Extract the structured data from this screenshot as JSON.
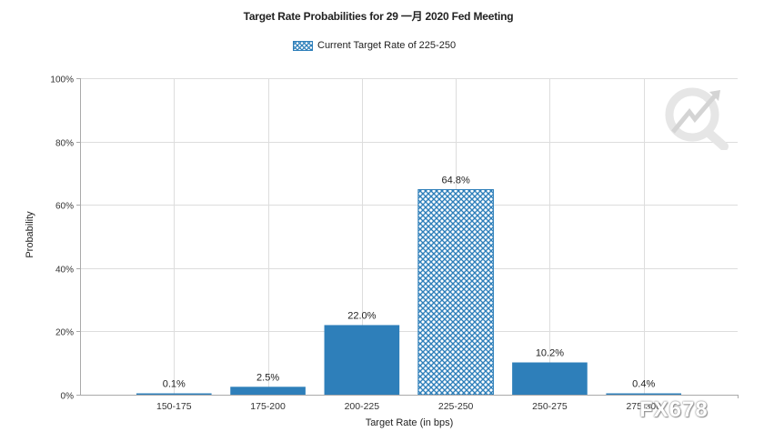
{
  "chart_data": {
    "type": "bar",
    "title": "Target Rate Probabilities for 29 一月 2020 Fed Meeting",
    "legend": {
      "label": "Current Target Rate of 225-250",
      "placement": "top-center"
    },
    "xlabel": "Target Rate (in bps)",
    "ylabel": "Probability",
    "categories": [
      "150-175",
      "175-200",
      "200-225",
      "225-250",
      "250-275",
      "275-300"
    ],
    "values": [
      0.1,
      2.5,
      22.0,
      64.8,
      10.2,
      0.4
    ],
    "value_labels": [
      "0.1%",
      "2.5%",
      "22.0%",
      "64.8%",
      "10.2%",
      "0.4%"
    ],
    "highlight_category": "225-250",
    "ylim": [
      0,
      100
    ],
    "yticks": [
      0,
      20,
      40,
      60,
      80,
      100
    ],
    "ytick_labels": [
      "0%",
      "20%",
      "40%",
      "60%",
      "80%",
      "100%"
    ],
    "grid": true
  },
  "colors": {
    "bar": "#2e7fba",
    "hatch_bg": "#ffffff",
    "grid": "#dddddd",
    "axis": "#aaaaaa"
  },
  "watermark": {
    "text": "FX678",
    "logo": "magnifier-arrow-icon"
  }
}
